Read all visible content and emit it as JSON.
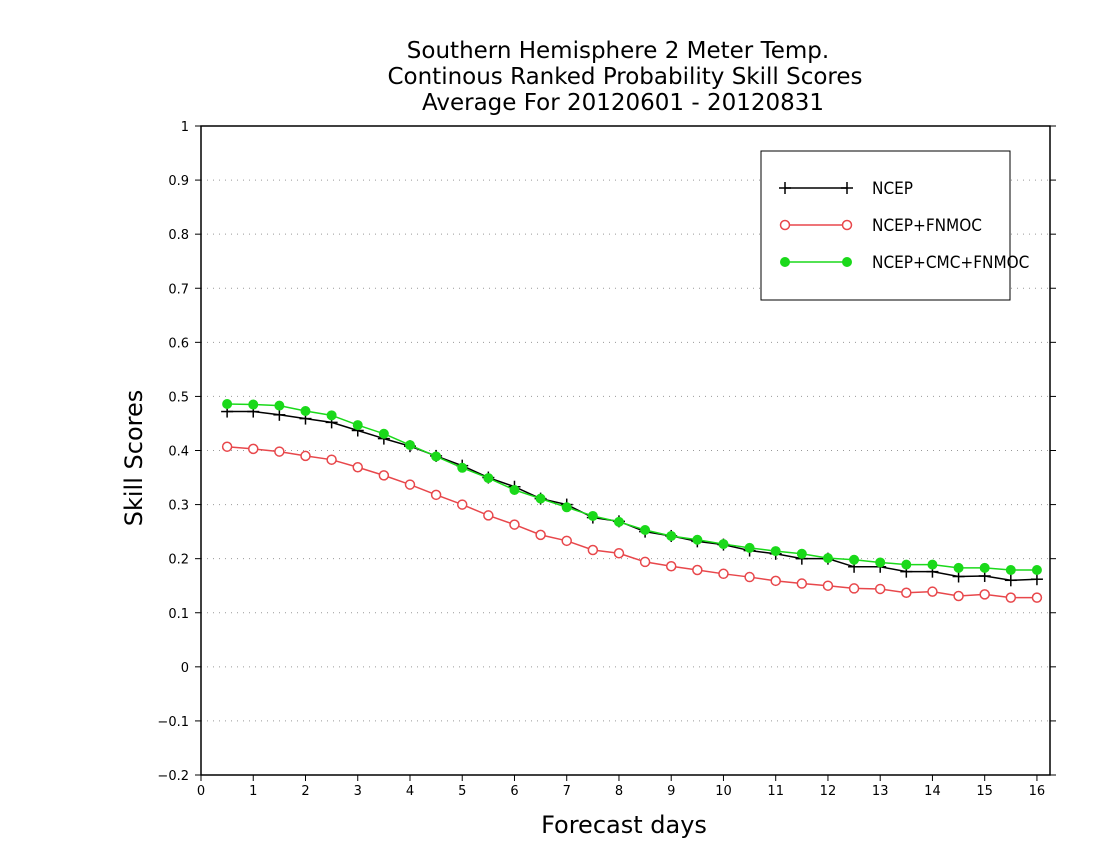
{
  "chart_data": {
    "type": "line",
    "title_lines": [
      "Southern Hemisphere 2 Meter Temp.",
      "Continous Ranked Probability Skill Scores",
      "Average For 20120601 - 20120831"
    ],
    "xlabel": "Forecast days",
    "ylabel": "Skill Scores",
    "xlim": [
      0,
      16.25
    ],
    "ylim": [
      -0.2,
      1
    ],
    "xticks": [
      0,
      1,
      2,
      3,
      4,
      5,
      6,
      7,
      8,
      9,
      10,
      11,
      12,
      13,
      14,
      15,
      16
    ],
    "xtick_labels": [
      "0",
      "1",
      "2",
      "3",
      "4",
      "5",
      "6",
      "7",
      "8",
      "9",
      "10",
      "11",
      "12",
      "13",
      "14",
      "15",
      "16"
    ],
    "yticks": [
      -0.2,
      -0.1,
      0,
      0.1,
      0.2,
      0.3,
      0.4,
      0.5,
      0.6,
      0.7,
      0.8,
      0.9,
      1
    ],
    "ytick_labels": [
      "−0.2",
      "−0.1",
      "0",
      "0.1",
      "0.2",
      "0.3",
      "0.4",
      "0.5",
      "0.6",
      "0.7",
      "0.8",
      "0.9",
      "1"
    ],
    "grid": "horizontal-dotted",
    "legend_position": "top-right",
    "x": [
      0.5,
      1,
      1.5,
      2,
      2.5,
      3,
      3.5,
      4,
      4.5,
      5,
      5.5,
      6,
      6.5,
      7,
      7.5,
      8,
      8.5,
      9,
      9.5,
      10,
      10.5,
      11,
      11.5,
      12,
      12.5,
      13,
      13.5,
      14,
      14.5,
      15,
      15.5,
      16
    ],
    "series": [
      {
        "name": "NCEP",
        "color": "#000000",
        "marker": "plus",
        "values": [
          0.472,
          0.472,
          0.466,
          0.459,
          0.452,
          0.437,
          0.422,
          0.408,
          0.39,
          0.372,
          0.35,
          0.333,
          0.311,
          0.3,
          0.276,
          0.269,
          0.25,
          0.242,
          0.232,
          0.226,
          0.215,
          0.209,
          0.2,
          0.2,
          0.185,
          0.185,
          0.176,
          0.176,
          0.167,
          0.168,
          0.16,
          0.162
        ]
      },
      {
        "name": "NCEP+FNMOC",
        "color": "#e8474b",
        "marker": "open-circle",
        "values": [
          0.407,
          0.403,
          0.398,
          0.39,
          0.383,
          0.369,
          0.354,
          0.337,
          0.318,
          0.3,
          0.28,
          0.263,
          0.244,
          0.233,
          0.216,
          0.21,
          0.194,
          0.186,
          0.179,
          0.172,
          0.166,
          0.159,
          0.154,
          0.15,
          0.145,
          0.144,
          0.137,
          0.139,
          0.131,
          0.134,
          0.128,
          0.128
        ]
      },
      {
        "name": "NCEP+CMC+FNMOC",
        "color": "#1ad91a",
        "marker": "filled-circle",
        "values": [
          0.486,
          0.485,
          0.483,
          0.473,
          0.465,
          0.447,
          0.431,
          0.41,
          0.389,
          0.368,
          0.349,
          0.327,
          0.311,
          0.295,
          0.279,
          0.268,
          0.253,
          0.242,
          0.235,
          0.227,
          0.22,
          0.214,
          0.209,
          0.201,
          0.198,
          0.193,
          0.189,
          0.189,
          0.183,
          0.183,
          0.179,
          0.179
        ]
      }
    ]
  }
}
